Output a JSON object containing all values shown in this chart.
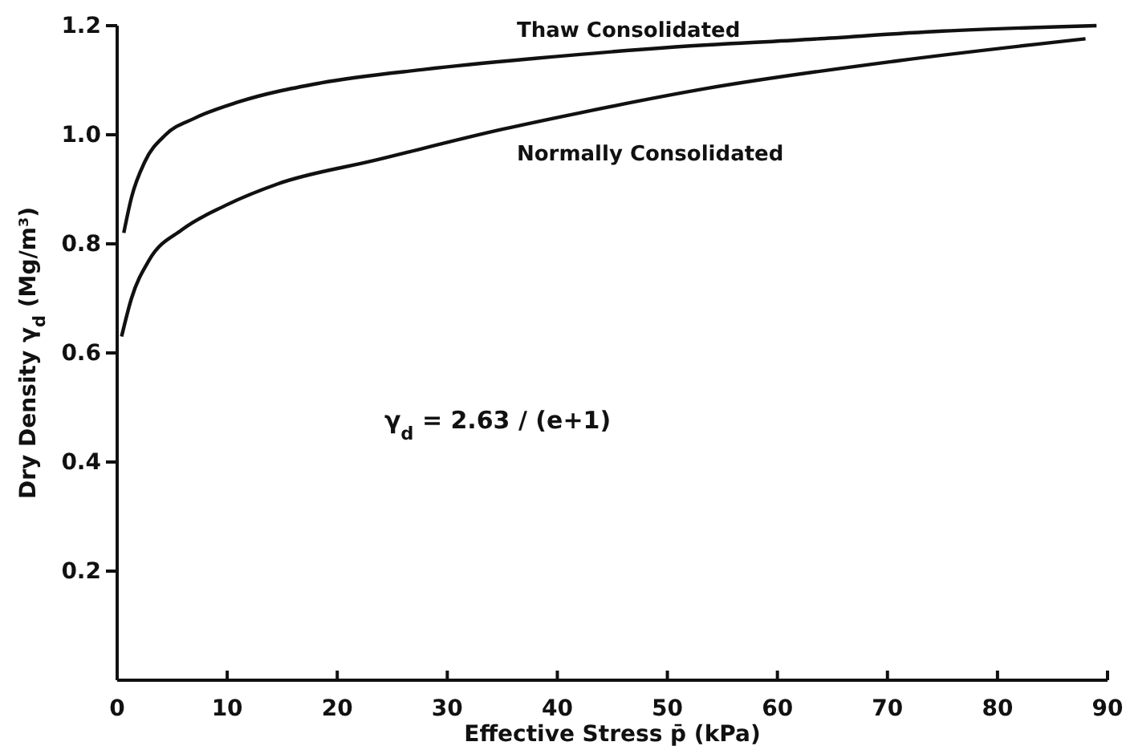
{
  "chart_data": {
    "type": "line",
    "xlabel": "Effective Stress p̄ (kPa)",
    "ylabel": "Dry Density γ$_{d}$ (Mg/m³)",
    "xlim": [
      0,
      90
    ],
    "xticks": [
      0,
      10,
      20,
      30,
      40,
      50,
      60,
      70,
      80,
      90
    ],
    "ylim": [
      0,
      1.2
    ],
    "yticks": [
      0.2,
      0.4,
      0.6,
      0.8,
      {
        "value": 1.0,
        "label": "1.0"
      },
      1.2
    ],
    "grid": false,
    "legend": false,
    "marker": "none",
    "line_style": "solid",
    "series": [
      {
        "name": "Thaw Consolidated",
        "color": "#111111",
        "x": [
          0.6,
          1.3,
          2.5,
          4.4,
          7,
          11,
          18.5,
          28,
          38,
          50,
          63,
          75,
          89
        ],
        "values": [
          0.82,
          0.885,
          0.95,
          1.0,
          1.03,
          1.06,
          1.095,
          1.12,
          1.14,
          1.16,
          1.175,
          1.19,
          1.2
        ]
      },
      {
        "name": "Normally Consolidated",
        "color": "#111111",
        "x": [
          0.4,
          1.3,
          2.9,
          5.9,
          9.8,
          14.6,
          23.4,
          35,
          42,
          53.6,
          70.7,
          88
        ],
        "values": [
          0.63,
          0.7,
          0.77,
          0.826,
          0.87,
          0.91,
          0.953,
          1.01,
          1.04,
          1.085,
          1.135,
          1.176
        ]
      }
    ],
    "annotations": [
      {
        "text": "γ$_{d}$ = 2.63 / (e+1)"
      }
    ]
  }
}
